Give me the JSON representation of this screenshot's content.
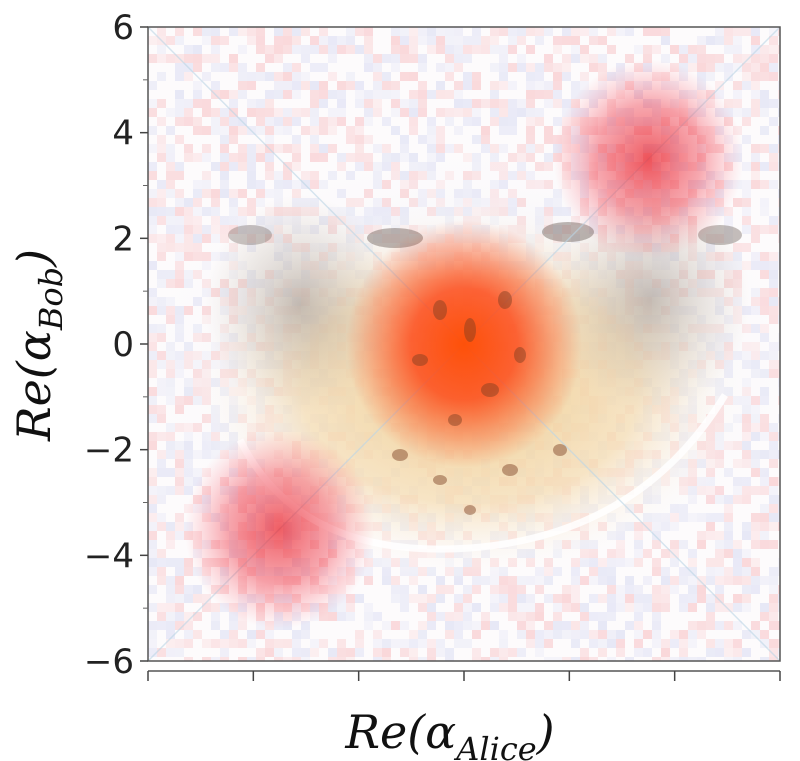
{
  "chart_data": {
    "type": "heatmap",
    "title": "",
    "xlabel": "Re(α_Alice)",
    "ylabel": "Re(α_Bob)",
    "xlabel_parts": {
      "base": "Re(α",
      "sub": "Alice",
      "close": ")"
    },
    "ylabel_parts": {
      "base": "Re(α",
      "sub": "Bob",
      "close": ")"
    },
    "xlim": [
      -6,
      6
    ],
    "ylim": [
      -6,
      6
    ],
    "y_ticks": [
      6,
      4,
      2,
      0,
      -2,
      -4,
      -6
    ],
    "y_tick_labels": [
      "6",
      "4",
      "2",
      "0",
      "−2",
      "−4",
      "−6"
    ],
    "x_ticks": [
      -6,
      -4,
      -2,
      0,
      2,
      4,
      6
    ],
    "x_tick_labels": [],
    "grid": false,
    "colormap": {
      "positive": "#e8121b",
      "core": "#ff5a00",
      "negative": "#6a7fd8"
    },
    "peaks": [
      {
        "x": 0,
        "y": 0,
        "amplitude": 1.0
      },
      {
        "x": 3.5,
        "y": 3.5,
        "amplitude": 0.75
      },
      {
        "x": -3.5,
        "y": -3.5,
        "amplitude": 0.75
      }
    ],
    "overlay_image": "cheetah faces photo",
    "overlay_features": [
      "cheetah-face-left",
      "cheetah-face-right",
      "white-arc"
    ]
  }
}
